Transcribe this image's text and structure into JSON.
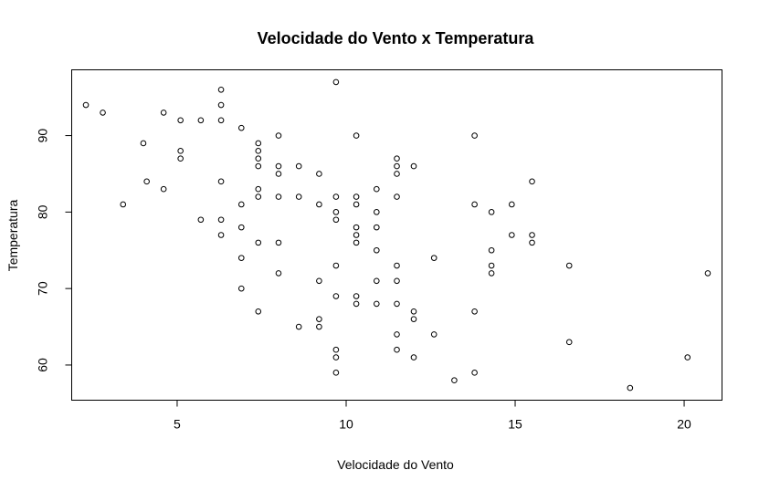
{
  "chart_data": {
    "type": "scatter",
    "title": "Velocidade do Vento x Temperatura",
    "xlabel": "Velocidade do Vento",
    "ylabel": "Temperatura",
    "xlim": [
      1.88,
      21.12
    ],
    "ylim": [
      55.4,
      98.6
    ],
    "x_ticks": [
      5,
      10,
      15,
      20
    ],
    "y_ticks": [
      60,
      70,
      80,
      90
    ],
    "grid": false,
    "marker": "open-circle",
    "points": [
      {
        "x": 2.3,
        "y": 94
      },
      {
        "x": 2.8,
        "y": 93
      },
      {
        "x": 3.4,
        "y": 81
      },
      {
        "x": 4.0,
        "y": 89
      },
      {
        "x": 4.1,
        "y": 84
      },
      {
        "x": 4.6,
        "y": 93
      },
      {
        "x": 4.6,
        "y": 83
      },
      {
        "x": 5.1,
        "y": 92
      },
      {
        "x": 5.1,
        "y": 88
      },
      {
        "x": 5.1,
        "y": 87
      },
      {
        "x": 5.7,
        "y": 92
      },
      {
        "x": 5.7,
        "y": 79
      },
      {
        "x": 6.3,
        "y": 96
      },
      {
        "x": 6.3,
        "y": 94
      },
      {
        "x": 6.3,
        "y": 92
      },
      {
        "x": 6.3,
        "y": 84
      },
      {
        "x": 6.3,
        "y": 79
      },
      {
        "x": 6.3,
        "y": 77
      },
      {
        "x": 6.9,
        "y": 91
      },
      {
        "x": 6.9,
        "y": 81
      },
      {
        "x": 6.9,
        "y": 78
      },
      {
        "x": 6.9,
        "y": 74
      },
      {
        "x": 6.9,
        "y": 70
      },
      {
        "x": 7.4,
        "y": 89
      },
      {
        "x": 7.4,
        "y": 88
      },
      {
        "x": 7.4,
        "y": 87
      },
      {
        "x": 7.4,
        "y": 86
      },
      {
        "x": 7.4,
        "y": 83
      },
      {
        "x": 7.4,
        "y": 82
      },
      {
        "x": 7.4,
        "y": 76
      },
      {
        "x": 7.4,
        "y": 67
      },
      {
        "x": 8.0,
        "y": 90
      },
      {
        "x": 8.0,
        "y": 86
      },
      {
        "x": 8.0,
        "y": 85
      },
      {
        "x": 8.0,
        "y": 82
      },
      {
        "x": 8.0,
        "y": 76
      },
      {
        "x": 8.0,
        "y": 72
      },
      {
        "x": 8.6,
        "y": 86
      },
      {
        "x": 8.6,
        "y": 82
      },
      {
        "x": 8.6,
        "y": 65
      },
      {
        "x": 9.2,
        "y": 85
      },
      {
        "x": 9.2,
        "y": 81
      },
      {
        "x": 9.2,
        "y": 71
      },
      {
        "x": 9.2,
        "y": 66
      },
      {
        "x": 9.2,
        "y": 65
      },
      {
        "x": 9.7,
        "y": 97
      },
      {
        "x": 9.7,
        "y": 82
      },
      {
        "x": 9.7,
        "y": 80
      },
      {
        "x": 9.7,
        "y": 79
      },
      {
        "x": 9.7,
        "y": 73
      },
      {
        "x": 9.7,
        "y": 69
      },
      {
        "x": 9.7,
        "y": 62
      },
      {
        "x": 9.7,
        "y": 61
      },
      {
        "x": 9.7,
        "y": 59
      },
      {
        "x": 10.3,
        "y": 90
      },
      {
        "x": 10.3,
        "y": 82
      },
      {
        "x": 10.3,
        "y": 81
      },
      {
        "x": 10.3,
        "y": 78
      },
      {
        "x": 10.3,
        "y": 77
      },
      {
        "x": 10.3,
        "y": 76
      },
      {
        "x": 10.3,
        "y": 69
      },
      {
        "x": 10.3,
        "y": 68
      },
      {
        "x": 10.9,
        "y": 83
      },
      {
        "x": 10.9,
        "y": 80
      },
      {
        "x": 10.9,
        "y": 78
      },
      {
        "x": 10.9,
        "y": 75
      },
      {
        "x": 10.9,
        "y": 71
      },
      {
        "x": 10.9,
        "y": 68
      },
      {
        "x": 11.5,
        "y": 87
      },
      {
        "x": 11.5,
        "y": 86
      },
      {
        "x": 11.5,
        "y": 85
      },
      {
        "x": 11.5,
        "y": 82
      },
      {
        "x": 11.5,
        "y": 73
      },
      {
        "x": 11.5,
        "y": 71
      },
      {
        "x": 11.5,
        "y": 68
      },
      {
        "x": 11.5,
        "y": 64
      },
      {
        "x": 11.5,
        "y": 62
      },
      {
        "x": 12.0,
        "y": 86
      },
      {
        "x": 12.0,
        "y": 67
      },
      {
        "x": 12.0,
        "y": 66
      },
      {
        "x": 12.0,
        "y": 61
      },
      {
        "x": 12.6,
        "y": 74
      },
      {
        "x": 12.6,
        "y": 64
      },
      {
        "x": 13.2,
        "y": 58
      },
      {
        "x": 13.8,
        "y": 90
      },
      {
        "x": 13.8,
        "y": 81
      },
      {
        "x": 13.8,
        "y": 67
      },
      {
        "x": 13.8,
        "y": 59
      },
      {
        "x": 14.3,
        "y": 80
      },
      {
        "x": 14.3,
        "y": 75
      },
      {
        "x": 14.3,
        "y": 73
      },
      {
        "x": 14.3,
        "y": 72
      },
      {
        "x": 14.9,
        "y": 81
      },
      {
        "x": 14.9,
        "y": 77
      },
      {
        "x": 15.5,
        "y": 84
      },
      {
        "x": 15.5,
        "y": 77
      },
      {
        "x": 15.5,
        "y": 76
      },
      {
        "x": 16.6,
        "y": 73
      },
      {
        "x": 16.6,
        "y": 63
      },
      {
        "x": 18.4,
        "y": 57
      },
      {
        "x": 20.1,
        "y": 61
      },
      {
        "x": 20.7,
        "y": 72
      }
    ]
  }
}
